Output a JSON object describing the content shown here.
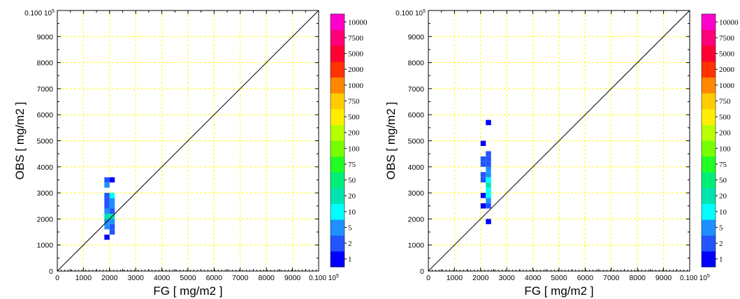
{
  "chart_data": [
    {
      "type": "heatmap",
      "xlabel": "FG  [ mg/m2 ]",
      "ylabel": "OBS  [ mg/m2 ]",
      "xlim": [
        0,
        10000
      ],
      "ylim": [
        0,
        10000
      ],
      "x_ticks": [
        "0",
        "1000",
        "2000",
        "3000",
        "4000",
        "5000",
        "6000",
        "7000",
        "8000",
        "9000"
      ],
      "y_ticks": [
        "0",
        "1000",
        "2000",
        "3000",
        "4000",
        "5000",
        "6000",
        "7000",
        "8000",
        "9000"
      ],
      "axis_end_label": "0.100 10",
      "axis_end_exponent": "5",
      "grid": true,
      "diagonal": true,
      "colorbar": {
        "levels": [
          "1",
          "2",
          "5",
          "10",
          "20",
          "50",
          "75",
          "100",
          "200",
          "500",
          "750",
          "1000",
          "2000",
          "5000",
          "7500",
          "10000"
        ],
        "colors": [
          "#0000ff",
          "#2255ff",
          "#1e90ff",
          "#00ffff",
          "#00e5b0",
          "#00ee77",
          "#22ff22",
          "#77ff00",
          "#b8ff00",
          "#ffee00",
          "#ffcc00",
          "#ff8800",
          "#ff3300",
          "#ff0033",
          "#ff0077",
          "#ff00cc"
        ]
      },
      "cells": [
        {
          "x": 1900,
          "y": 1300,
          "count": 1
        },
        {
          "x": 2100,
          "y": 1500,
          "count": 2
        },
        {
          "x": 2100,
          "y": 1700,
          "count": 2
        },
        {
          "x": 1900,
          "y": 1700,
          "count": 5
        },
        {
          "x": 1900,
          "y": 1900,
          "count": 5
        },
        {
          "x": 2100,
          "y": 1900,
          "count": 5
        },
        {
          "x": 1900,
          "y": 2100,
          "count": 20
        },
        {
          "x": 2100,
          "y": 2100,
          "count": 20
        },
        {
          "x": 1900,
          "y": 2300,
          "count": 5
        },
        {
          "x": 2100,
          "y": 2300,
          "count": 2
        },
        {
          "x": 1900,
          "y": 2500,
          "count": 2
        },
        {
          "x": 2100,
          "y": 2500,
          "count": 5
        },
        {
          "x": 1900,
          "y": 2700,
          "count": 2
        },
        {
          "x": 2100,
          "y": 2700,
          "count": 5
        },
        {
          "x": 1900,
          "y": 2900,
          "count": 2
        },
        {
          "x": 2100,
          "y": 2900,
          "count": 10
        },
        {
          "x": 1900,
          "y": 3300,
          "count": 5
        },
        {
          "x": 1900,
          "y": 3500,
          "count": 2
        },
        {
          "x": 2100,
          "y": 3500,
          "count": 1
        }
      ]
    },
    {
      "type": "heatmap",
      "xlabel": "FG  [ mg/m2 ]",
      "ylabel": "OBS  [ mg/m2 ]",
      "xlim": [
        0,
        10000
      ],
      "ylim": [
        0,
        10000
      ],
      "x_ticks": [
        "0",
        "1000",
        "2000",
        "3000",
        "4000",
        "5000",
        "6000",
        "7000",
        "8000",
        "9000"
      ],
      "y_ticks": [
        "0",
        "1000",
        "2000",
        "3000",
        "4000",
        "5000",
        "6000",
        "7000",
        "8000",
        "9000"
      ],
      "axis_end_label": "0.100 10",
      "axis_end_exponent": "5",
      "grid": true,
      "diagonal": true,
      "colorbar": {
        "levels": [
          "1",
          "2",
          "5",
          "10",
          "20",
          "50",
          "75",
          "100",
          "200",
          "500",
          "750",
          "1000",
          "2000",
          "5000",
          "7500",
          "10000"
        ],
        "colors": [
          "#0000ff",
          "#2255ff",
          "#1e90ff",
          "#00ffff",
          "#00e5b0",
          "#00ee77",
          "#22ff22",
          "#77ff00",
          "#b8ff00",
          "#ffee00",
          "#ffcc00",
          "#ff8800",
          "#ff3300",
          "#ff0033",
          "#ff0077",
          "#ff00cc"
        ]
      },
      "cells": [
        {
          "x": 2300,
          "y": 1900,
          "count": 1
        },
        {
          "x": 2100,
          "y": 2500,
          "count": 1
        },
        {
          "x": 2300,
          "y": 2500,
          "count": 2
        },
        {
          "x": 2300,
          "y": 2700,
          "count": 5
        },
        {
          "x": 2100,
          "y": 2900,
          "count": 1
        },
        {
          "x": 2300,
          "y": 2900,
          "count": 10
        },
        {
          "x": 2300,
          "y": 3100,
          "count": 10
        },
        {
          "x": 2300,
          "y": 3300,
          "count": 20
        },
        {
          "x": 2100,
          "y": 3500,
          "count": 2
        },
        {
          "x": 2300,
          "y": 3500,
          "count": 10
        },
        {
          "x": 2100,
          "y": 3700,
          "count": 2
        },
        {
          "x": 2300,
          "y": 3700,
          "count": 5
        },
        {
          "x": 2300,
          "y": 3900,
          "count": 5
        },
        {
          "x": 2100,
          "y": 4100,
          "count": 2
        },
        {
          "x": 2300,
          "y": 4100,
          "count": 2
        },
        {
          "x": 2100,
          "y": 4300,
          "count": 2
        },
        {
          "x": 2300,
          "y": 4300,
          "count": 2
        },
        {
          "x": 2300,
          "y": 4500,
          "count": 2
        },
        {
          "x": 2100,
          "y": 4900,
          "count": 1
        },
        {
          "x": 2300,
          "y": 5700,
          "count": 1
        }
      ]
    }
  ]
}
